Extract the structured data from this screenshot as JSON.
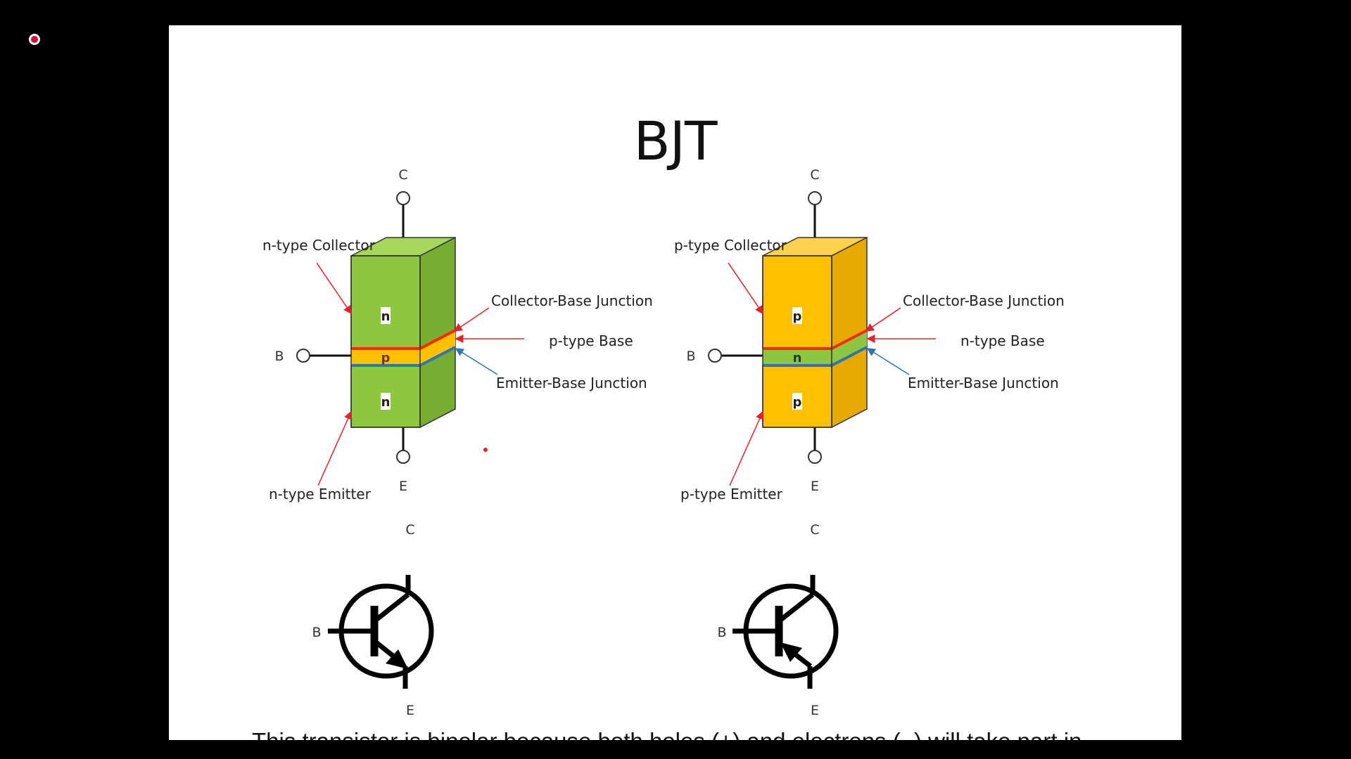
{
  "slide": {
    "title": "BJT",
    "caption": "This transistor is bipolar because both holes (+) and electrons (−) will take part in"
  },
  "colors": {
    "npn_body": "#8dc63f",
    "npn_side": "#77ad30",
    "npn_top": "#a6d65a",
    "npn_base": "#ffc000",
    "pnp_body": "#ffc000",
    "pnp_side": "#e6a900",
    "pnp_top": "#ffd24d",
    "pnp_base": "#8dc63f",
    "cb_junction": "#ff2a00",
    "eb_junction": "#2e75b6",
    "arrow_red": "#e8202a",
    "arrow_blue": "#2e75b6",
    "record": "#d0103a"
  },
  "npn": {
    "terminal_c": "C",
    "terminal_b": "B",
    "terminal_e": "E",
    "layer_top": "n",
    "layer_mid": "p",
    "layer_bottom": "n",
    "label_collector": "n-type Collector",
    "label_cb_junction": "Collector-Base Junction",
    "label_base": "p-type Base",
    "label_eb_junction": "Emitter-Base Junction",
    "label_emitter": "n-type Emitter"
  },
  "pnp": {
    "terminal_c": "C",
    "terminal_b": "B",
    "terminal_e": "E",
    "layer_top": "p",
    "layer_mid": "n",
    "layer_bottom": "p",
    "label_collector": "p-type Collector",
    "label_cb_junction": "Collector-Base Junction",
    "label_base": "n-type Base",
    "label_eb_junction": "Emitter-Base Junction",
    "label_emitter": "p-type Emitter"
  },
  "npn_symbol": {
    "terminal_c": "C",
    "terminal_b": "B",
    "terminal_e": "E"
  },
  "pnp_symbol": {
    "terminal_c": "C",
    "terminal_b": "B",
    "terminal_e": "E"
  }
}
